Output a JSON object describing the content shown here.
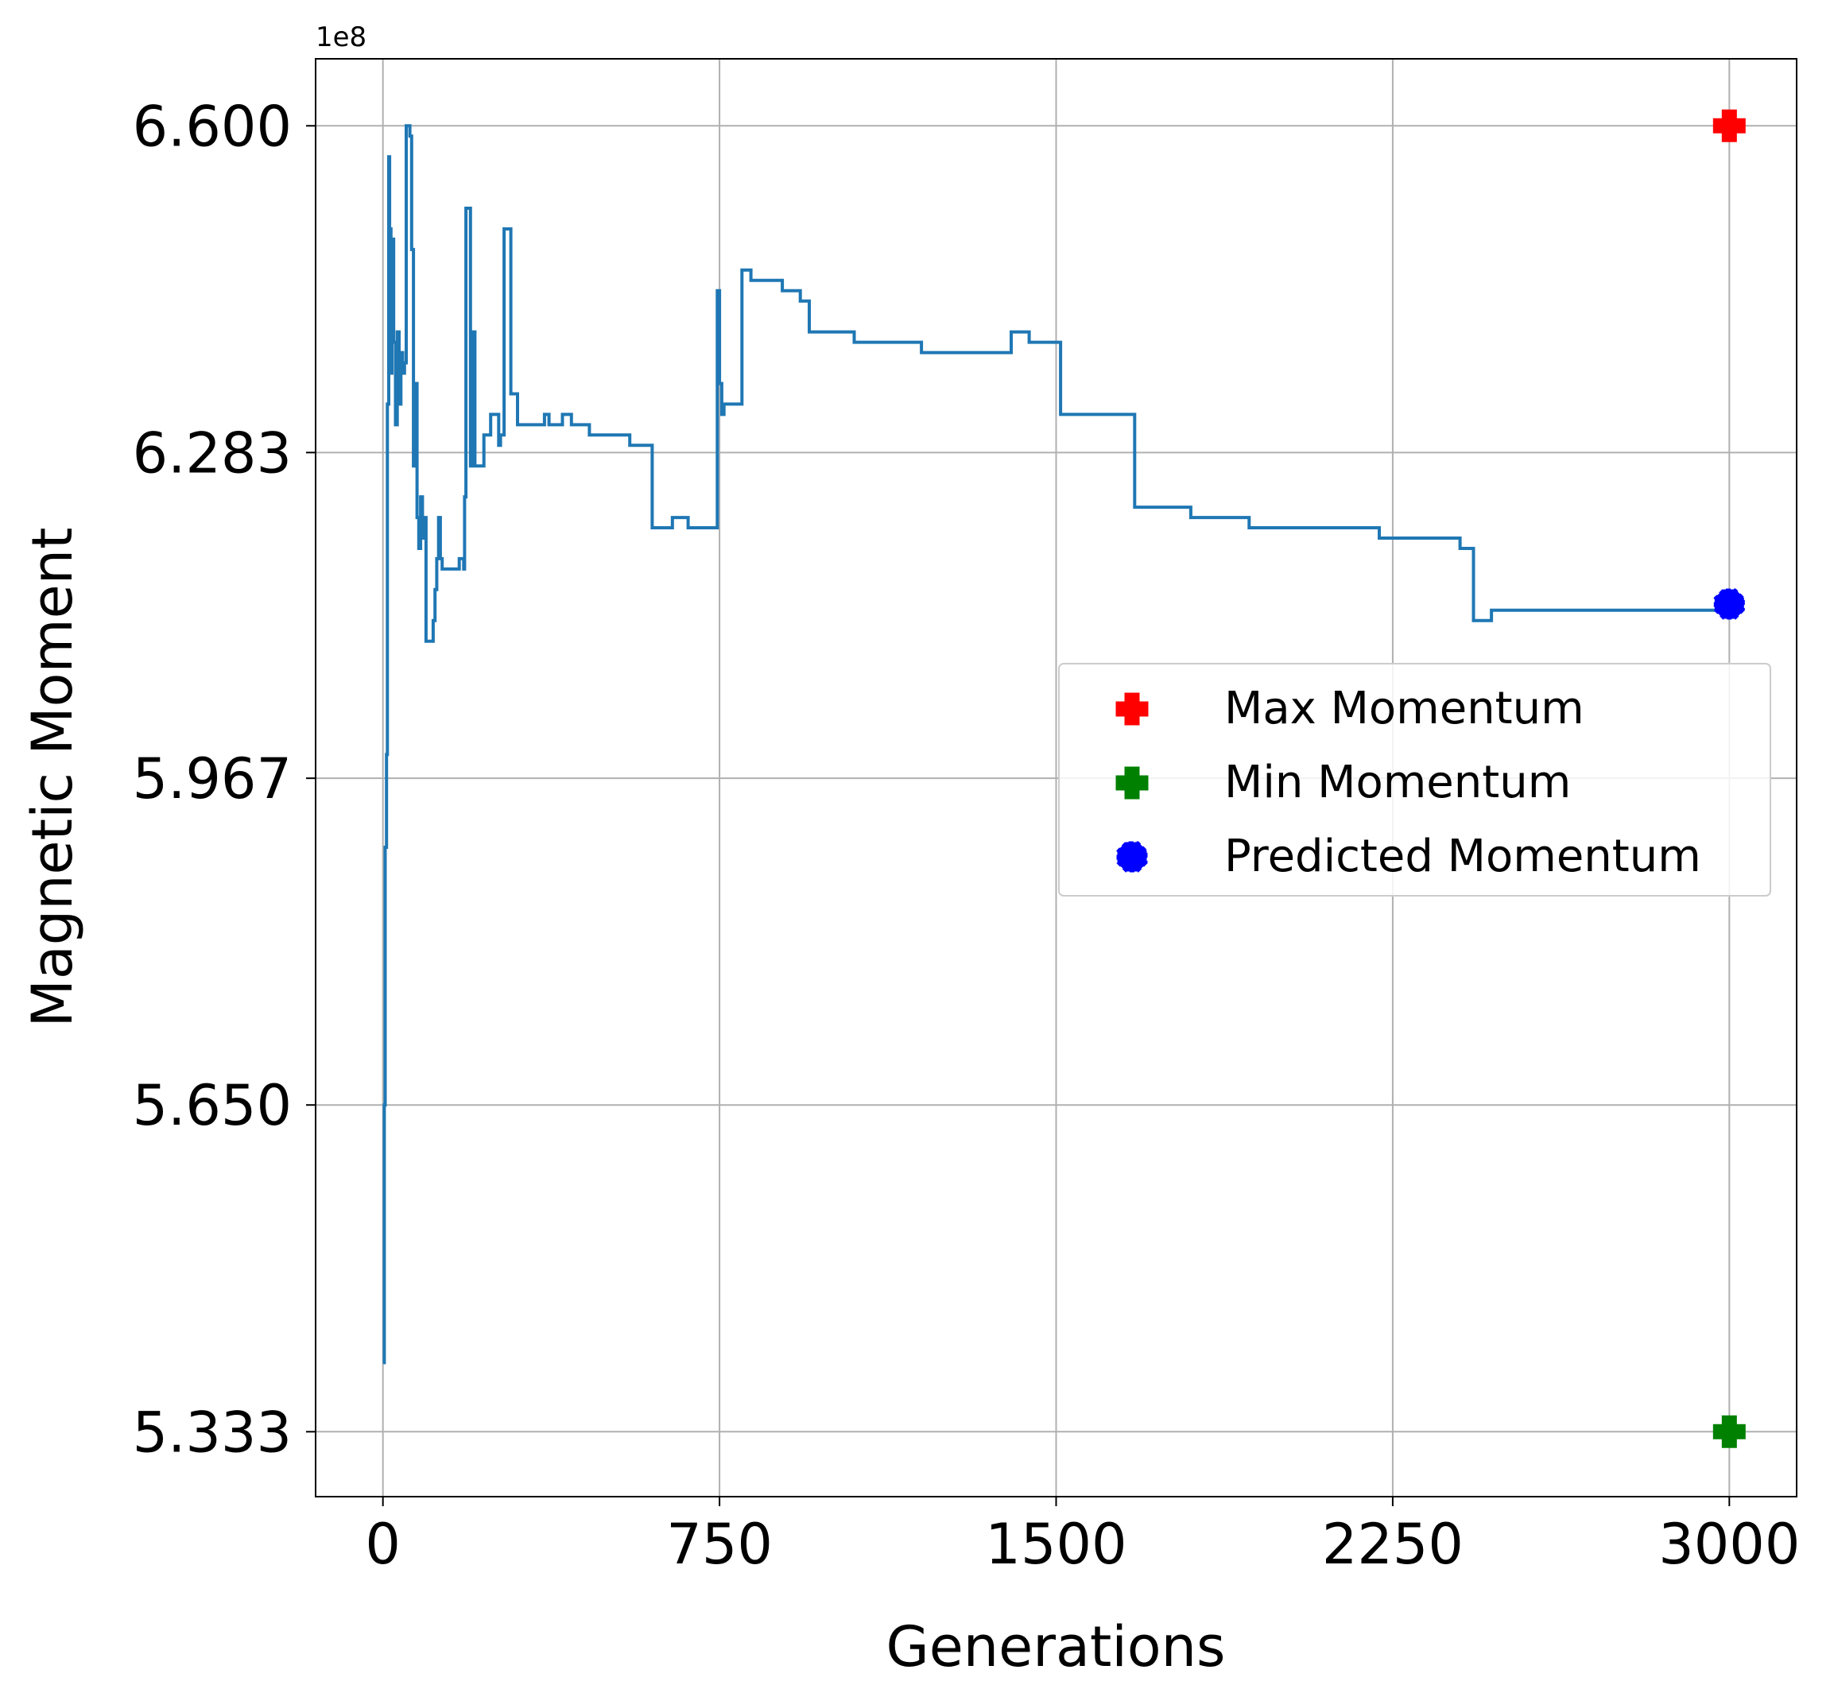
{
  "chart_data": {
    "type": "line",
    "title": "",
    "xlabel": "Generations",
    "ylabel": "Magnetic Moment",
    "y_multiplier_label": "1e8",
    "x_ticks": [
      0,
      750,
      1500,
      2250,
      3000
    ],
    "x_tick_labels": [
      "0",
      "750",
      "1500",
      "2250",
      "3000"
    ],
    "y_ticks": [
      5.333,
      5.65,
      5.967,
      6.283,
      6.6
    ],
    "y_tick_labels": [
      "5.333",
      "5.650",
      "5.967",
      "6.283",
      "6.600"
    ],
    "xlim": [
      -150,
      3150
    ],
    "ylim": [
      5.27,
      6.665
    ],
    "grid": true,
    "legend_position": "right",
    "series": [
      {
        "name": "",
        "color": "#1f77b4",
        "step": true,
        "x": [
          0,
          3,
          5,
          8,
          10,
          13,
          15,
          18,
          20,
          24,
          28,
          32,
          36,
          40,
          44,
          48,
          52,
          56,
          60,
          64,
          68,
          72,
          76,
          80,
          84,
          88,
          92,
          96,
          100,
          104,
          108,
          112,
          116,
          120,
          124,
          128,
          132,
          140,
          150,
          160,
          170,
          180,
          182,
          185,
          190,
          195,
          200,
          205,
          215,
          225,
          240,
          250,
          258,
          262,
          266,
          270,
          285,
          300,
          330,
          345,
          355,
          360,
          370,
          385,
          390,
          400,
          420,
          440,
          460,
          500,
          550,
          580,
          590,
          600,
          620,
          640,
          645,
          650,
          680,
          700,
          745,
          750,
          755,
          760,
          800,
          810,
          820,
          850,
          890,
          920,
          925,
          930,
          940,
          950,
          965,
          990,
          1000,
          1050,
          1100,
          1120,
          1150,
          1200,
          1300,
          1350,
          1400,
          1440,
          1500,
          1510,
          1600,
          1650,
          1670,
          1675,
          1680,
          1700,
          1750,
          1800,
          1900,
          1930,
          1940,
          2000,
          2050,
          2100,
          2200,
          2220,
          2300,
          2350,
          2400,
          2430,
          2450,
          2470,
          2500,
          2600,
          2650,
          2700,
          2800,
          3000
        ],
        "values": [
          5.4,
          5.65,
          5.9,
          5.99,
          6.33,
          6.57,
          6.5,
          6.36,
          6.49,
          6.39,
          6.31,
          6.4,
          6.33,
          6.38,
          6.36,
          6.37,
          6.6,
          6.6,
          6.59,
          6.48,
          6.27,
          6.35,
          6.22,
          6.19,
          6.24,
          6.2,
          6.22,
          6.1,
          6.1,
          6.1,
          6.1,
          6.12,
          6.15,
          6.18,
          6.22,
          6.18,
          6.17,
          6.17,
          6.17,
          6.17,
          6.18,
          6.17,
          6.24,
          6.52,
          6.52,
          6.27,
          6.4,
          6.27,
          6.27,
          6.3,
          6.32,
          6.32,
          6.29,
          6.3,
          6.3,
          6.5,
          6.34,
          6.31,
          6.31,
          6.31,
          6.31,
          6.32,
          6.31,
          6.31,
          6.31,
          6.32,
          6.31,
          6.31,
          6.3,
          6.3,
          6.29,
          6.29,
          6.29,
          6.21,
          6.21,
          6.21,
          6.22,
          6.22,
          6.21,
          6.21,
          6.44,
          6.35,
          6.32,
          6.33,
          6.46,
          6.46,
          6.45,
          6.45,
          6.44,
          6.44,
          6.44,
          6.43,
          6.43,
          6.4,
          6.4,
          6.4,
          6.4,
          6.39,
          6.39,
          6.39,
          6.39,
          6.38,
          6.38,
          6.38,
          6.4,
          6.39,
          6.39,
          6.32,
          6.32,
          6.32,
          6.32,
          6.23,
          6.23,
          6.23,
          6.23,
          6.22,
          6.22,
          6.21,
          6.21,
          6.21,
          6.21,
          6.21,
          6.21,
          6.2,
          6.2,
          6.2,
          6.19,
          6.12,
          6.12,
          6.13,
          6.13,
          6.13,
          6.13,
          6.13,
          6.13,
          6.136
        ]
      }
    ],
    "markers": [
      {
        "name": "Max Momentum",
        "color": "#ff0000",
        "shape": "plus-filled",
        "x": 3000,
        "y": 6.6
      },
      {
        "name": "Min Momentum",
        "color": "#008000",
        "shape": "plus-filled",
        "x": 3000,
        "y": 5.333
      },
      {
        "name": "Predicted Momentum",
        "color": "#0000ff",
        "shape": "octagon",
        "x": 3000,
        "y": 6.136
      }
    ]
  }
}
